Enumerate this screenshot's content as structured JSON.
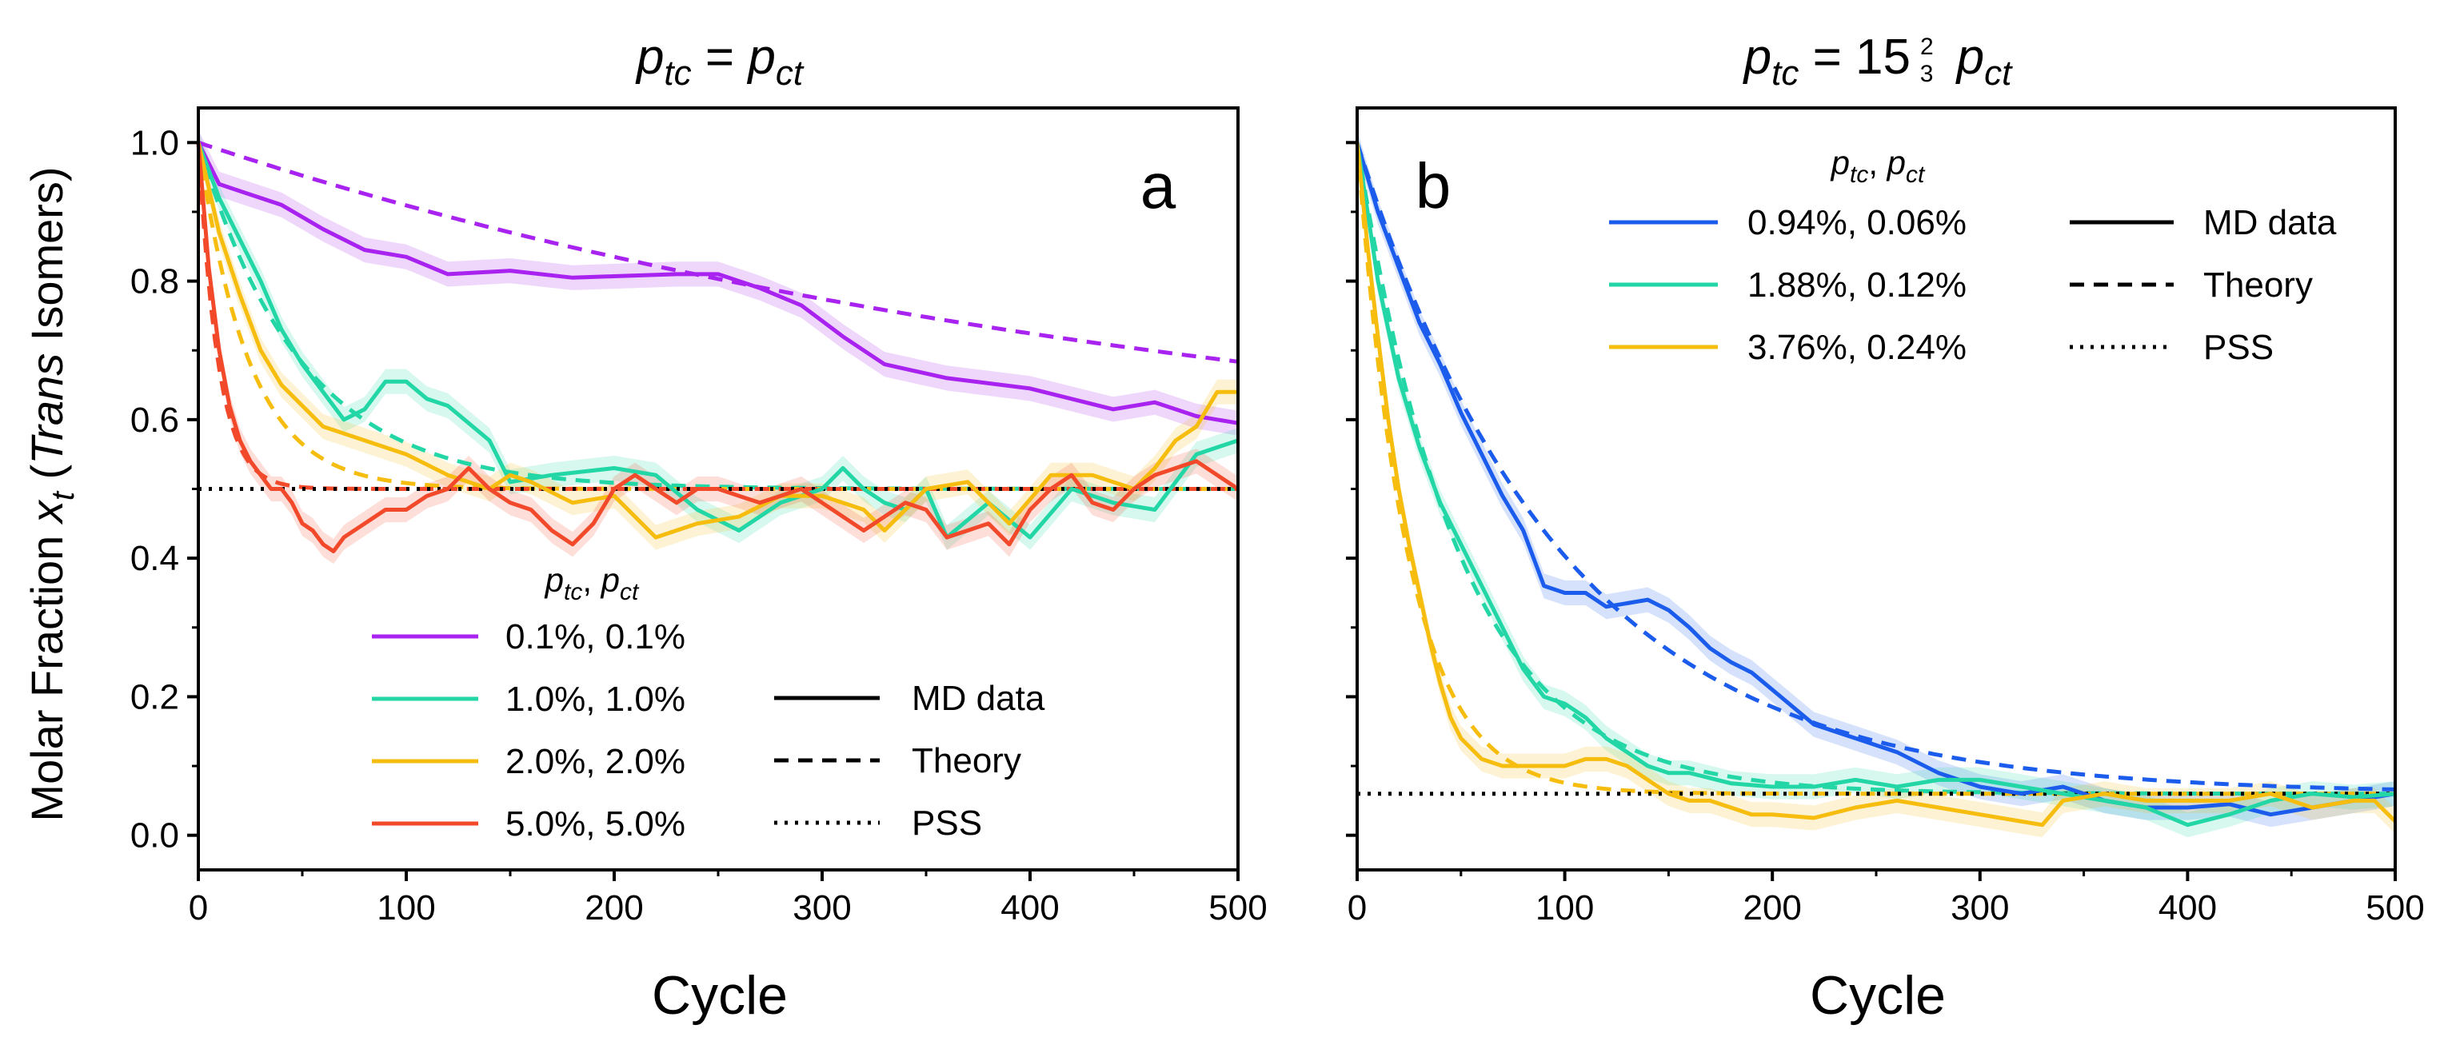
{
  "figure": {
    "ylabel_pre": "Molar Fraction ",
    "ylabel_var": "x",
    "ylabel_sub": "t",
    "ylabel_open": " (",
    "ylabel_italic": "Trans",
    "ylabel_post": " Isomers)"
  },
  "chart_data": [
    {
      "type": "line",
      "panel": "a",
      "title": {
        "lhs_var": "p",
        "lhs_sub": "tc",
        "eq": " = ",
        "rhs_var": "p",
        "rhs_sub": "ct",
        "factor_whole": "",
        "factor_num": "",
        "factor_den": ""
      },
      "xlabel": "Cycle",
      "xlim": [
        0,
        500
      ],
      "ylim": [
        -0.05,
        1.05
      ],
      "xticks": [
        0,
        100,
        200,
        300,
        400,
        500
      ],
      "xticklabels": [
        "0",
        "100",
        "200",
        "300",
        "400",
        "500"
      ],
      "yticks": [
        0.0,
        0.2,
        0.4,
        0.6,
        0.8,
        1.0
      ],
      "yticklabels": [
        "0.0",
        "0.2",
        "0.4",
        "0.6",
        "0.8",
        "1.0"
      ],
      "pss": 0.5,
      "legend_title": {
        "v1": "p",
        "s1": "tc",
        "mid": ", ",
        "v2": "p",
        "s2": "ct"
      },
      "style_legend": [
        "MD data",
        "Theory",
        "PSS"
      ],
      "series": [
        {
          "name": "0.1%, 0.1%",
          "color": "#a822f0",
          "x": [
            0,
            10,
            20,
            40,
            60,
            80,
            100,
            120,
            150,
            180,
            200,
            230,
            250,
            270,
            290,
            310,
            330,
            360,
            400,
            440,
            460,
            480,
            500
          ],
          "y": [
            1.0,
            0.94,
            0.93,
            0.91,
            0.875,
            0.845,
            0.835,
            0.81,
            0.815,
            0.805,
            0.807,
            0.81,
            0.81,
            0.79,
            0.765,
            0.72,
            0.68,
            0.66,
            0.645,
            0.615,
            0.625,
            0.605,
            0.595
          ],
          "theory_p": 0.001
        },
        {
          "name": "1.0%, 1.0%",
          "color": "#22d6a6",
          "x": [
            0,
            10,
            20,
            30,
            40,
            50,
            60,
            70,
            80,
            90,
            100,
            110,
            120,
            140,
            150,
            170,
            200,
            220,
            240,
            260,
            280,
            300,
            310,
            320,
            330,
            340,
            350,
            360,
            380,
            400,
            420,
            440,
            460,
            480,
            500
          ],
          "y": [
            1.0,
            0.92,
            0.86,
            0.8,
            0.73,
            0.68,
            0.64,
            0.6,
            0.615,
            0.655,
            0.655,
            0.63,
            0.62,
            0.57,
            0.51,
            0.52,
            0.53,
            0.52,
            0.47,
            0.44,
            0.48,
            0.5,
            0.53,
            0.5,
            0.48,
            0.47,
            0.5,
            0.43,
            0.48,
            0.43,
            0.5,
            0.48,
            0.47,
            0.55,
            0.57
          ],
          "theory_p": 0.01
        },
        {
          "name": "2.0%, 2.0%",
          "color": "#f6bd0e",
          "x": [
            0,
            10,
            20,
            30,
            40,
            50,
            60,
            80,
            100,
            120,
            140,
            150,
            160,
            180,
            200,
            220,
            240,
            260,
            280,
            300,
            320,
            330,
            350,
            370,
            390,
            410,
            430,
            450,
            460,
            470,
            480,
            490,
            500
          ],
          "y": [
            1.0,
            0.87,
            0.78,
            0.7,
            0.65,
            0.62,
            0.59,
            0.57,
            0.55,
            0.52,
            0.5,
            0.52,
            0.51,
            0.48,
            0.49,
            0.43,
            0.45,
            0.46,
            0.49,
            0.49,
            0.47,
            0.44,
            0.5,
            0.51,
            0.45,
            0.52,
            0.52,
            0.5,
            0.53,
            0.57,
            0.59,
            0.64,
            0.64
          ],
          "theory_p": 0.02
        },
        {
          "name": "5.0%, 5.0%",
          "color": "#f2492b",
          "x": [
            0,
            5,
            10,
            15,
            20,
            25,
            30,
            35,
            40,
            45,
            50,
            55,
            60,
            65,
            70,
            80,
            90,
            100,
            110,
            120,
            130,
            140,
            150,
            160,
            170,
            180,
            190,
            200,
            210,
            220,
            230,
            240,
            250,
            260,
            270,
            280,
            290,
            300,
            310,
            320,
            330,
            340,
            350,
            360,
            370,
            380,
            390,
            400,
            410,
            420,
            430,
            440,
            450,
            460,
            470,
            480,
            490,
            500
          ],
          "y": [
            1.0,
            0.82,
            0.7,
            0.62,
            0.57,
            0.54,
            0.52,
            0.5,
            0.5,
            0.48,
            0.45,
            0.44,
            0.42,
            0.41,
            0.43,
            0.45,
            0.47,
            0.47,
            0.49,
            0.5,
            0.53,
            0.5,
            0.48,
            0.47,
            0.44,
            0.42,
            0.45,
            0.5,
            0.52,
            0.5,
            0.48,
            0.5,
            0.5,
            0.49,
            0.48,
            0.49,
            0.5,
            0.48,
            0.46,
            0.44,
            0.46,
            0.48,
            0.47,
            0.43,
            0.44,
            0.45,
            0.42,
            0.47,
            0.5,
            0.52,
            0.48,
            0.47,
            0.5,
            0.52,
            0.53,
            0.54,
            0.52,
            0.5
          ],
          "theory_p": 0.05
        }
      ],
      "panel_label": "a"
    },
    {
      "type": "line",
      "panel": "b",
      "title": {
        "lhs_var": "p",
        "lhs_sub": "tc",
        "eq": " = ",
        "rhs_var": "p",
        "rhs_sub": "ct",
        "factor_whole": "15",
        "factor_num": "2",
        "factor_den": "3"
      },
      "xlabel": "Cycle",
      "xlim": [
        0,
        500
      ],
      "ylim": [
        -0.05,
        1.05
      ],
      "xticks": [
        0,
        100,
        200,
        300,
        400,
        500
      ],
      "xticklabels": [
        "0",
        "100",
        "200",
        "300",
        "400",
        "500"
      ],
      "yticks": [
        0.0,
        0.2,
        0.4,
        0.6,
        0.8,
        1.0
      ],
      "yticklabels": [],
      "pss": 0.06,
      "legend_title": {
        "v1": "p",
        "s1": "tc",
        "mid": ", ",
        "v2": "p",
        "s2": "ct"
      },
      "style_legend": [
        "MD data",
        "Theory",
        "PSS"
      ],
      "series": [
        {
          "name": "0.94%, 0.06%",
          "color": "#1b5cec",
          "x": [
            0,
            10,
            20,
            30,
            40,
            50,
            60,
            70,
            80,
            90,
            100,
            110,
            120,
            130,
            140,
            150,
            160,
            170,
            180,
            190,
            200,
            220,
            240,
            260,
            280,
            300,
            320,
            340,
            360,
            380,
            400,
            420,
            440,
            460,
            480,
            500
          ],
          "y": [
            1.0,
            0.9,
            0.82,
            0.74,
            0.68,
            0.61,
            0.55,
            0.49,
            0.44,
            0.36,
            0.35,
            0.35,
            0.33,
            0.335,
            0.34,
            0.325,
            0.3,
            0.27,
            0.25,
            0.235,
            0.21,
            0.16,
            0.14,
            0.12,
            0.09,
            0.07,
            0.06,
            0.07,
            0.05,
            0.04,
            0.04,
            0.045,
            0.03,
            0.04,
            0.05,
            0.06
          ],
          "theory_p": 0.0094
        },
        {
          "name": "1.88%, 0.12%",
          "color": "#22d6a6",
          "x": [
            0,
            10,
            20,
            30,
            40,
            50,
            60,
            70,
            80,
            90,
            100,
            110,
            120,
            130,
            140,
            150,
            160,
            180,
            200,
            220,
            240,
            260,
            280,
            300,
            320,
            340,
            360,
            380,
            400,
            420,
            440,
            460,
            480,
            500
          ],
          "y": [
            1.0,
            0.8,
            0.66,
            0.56,
            0.48,
            0.42,
            0.36,
            0.3,
            0.24,
            0.2,
            0.19,
            0.17,
            0.14,
            0.12,
            0.1,
            0.09,
            0.09,
            0.075,
            0.07,
            0.07,
            0.08,
            0.07,
            0.08,
            0.08,
            0.07,
            0.06,
            0.05,
            0.04,
            0.015,
            0.03,
            0.05,
            0.06,
            0.055,
            0.06
          ],
          "theory_p": 0.0188
        },
        {
          "name": "3.76%, 0.24%",
          "color": "#f6bd0e",
          "x": [
            0,
            5,
            10,
            15,
            20,
            25,
            30,
            35,
            40,
            45,
            50,
            60,
            70,
            80,
            90,
            100,
            110,
            120,
            130,
            140,
            150,
            160,
            170,
            180,
            190,
            200,
            220,
            240,
            260,
            280,
            300,
            320,
            330,
            340,
            360,
            380,
            400,
            420,
            440,
            460,
            480,
            490,
            500
          ],
          "y": [
            1.0,
            0.85,
            0.72,
            0.6,
            0.5,
            0.42,
            0.35,
            0.28,
            0.22,
            0.17,
            0.14,
            0.11,
            0.1,
            0.1,
            0.1,
            0.1,
            0.11,
            0.11,
            0.1,
            0.08,
            0.06,
            0.05,
            0.05,
            0.04,
            0.03,
            0.03,
            0.025,
            0.04,
            0.05,
            0.04,
            0.03,
            0.02,
            0.015,
            0.05,
            0.06,
            0.05,
            0.05,
            0.05,
            0.06,
            0.04,
            0.05,
            0.05,
            0.02
          ],
          "theory_p": 0.0376
        }
      ],
      "panel_label": "b"
    }
  ]
}
